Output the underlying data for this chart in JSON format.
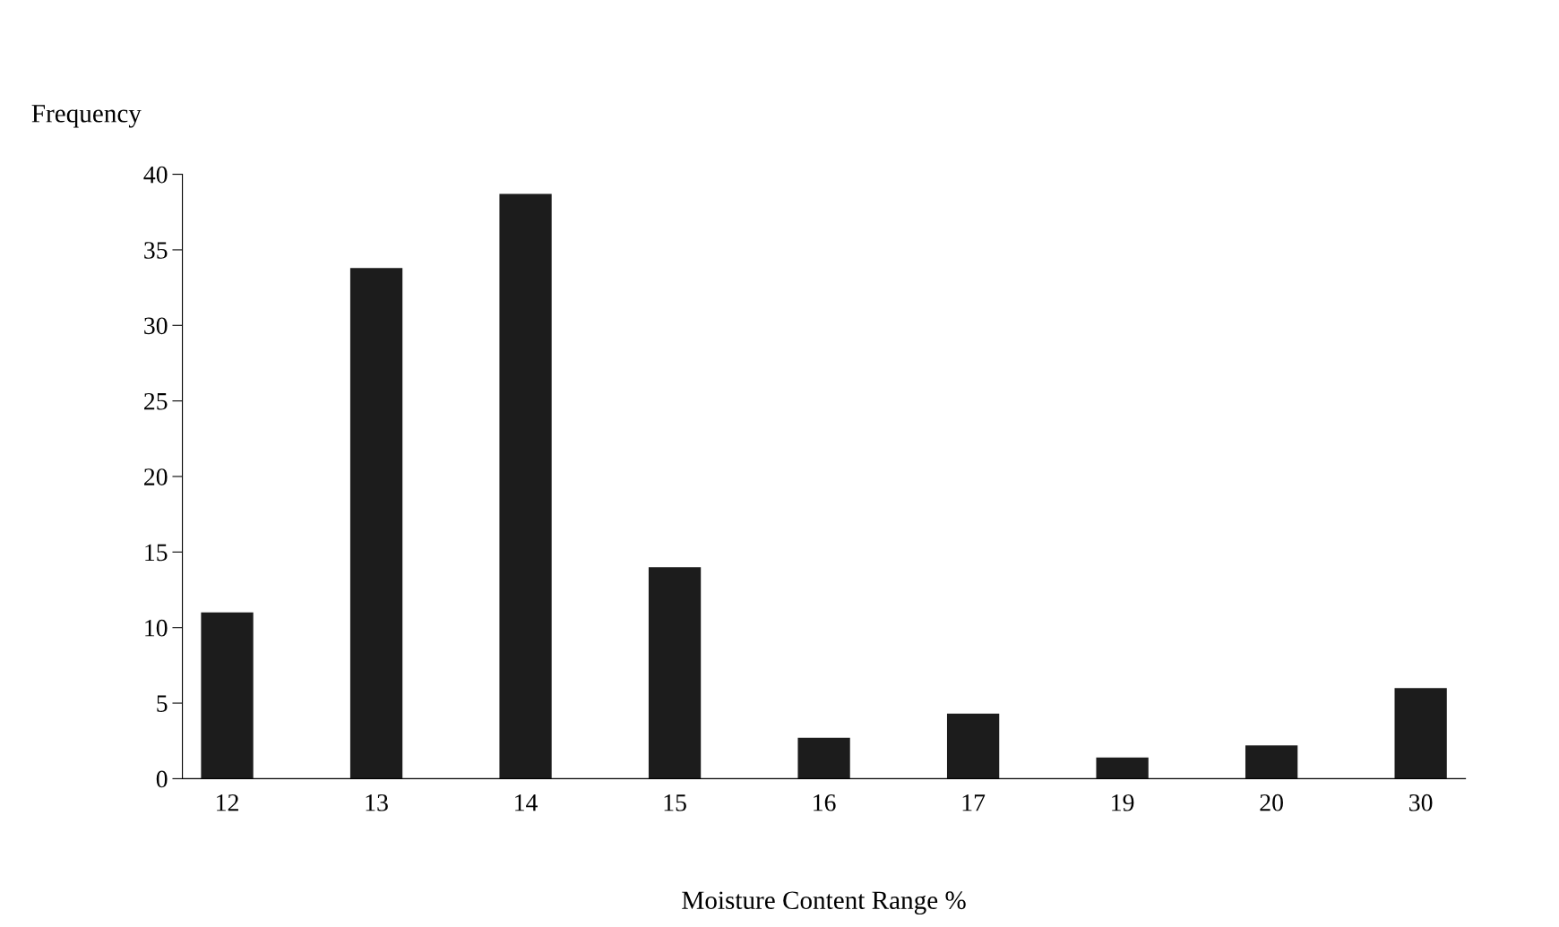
{
  "chart_data": {
    "type": "bar",
    "xlabel": "Moisture Content Range %",
    "ylabel": "Frequency",
    "categories": [
      "12",
      "13",
      "14",
      "15",
      "16",
      "17",
      "19",
      "20",
      "30"
    ],
    "series": [
      {
        "color": "#1c1c1c",
        "values": [
          11,
          33.8,
          38.7,
          14,
          2.7,
          4.3,
          1.4,
          2.2,
          6
        ]
      }
    ],
    "ylim": [
      0,
      40
    ],
    "yticks": [
      0,
      5,
      10,
      15,
      20,
      25,
      30,
      35,
      40
    ],
    "grid": false,
    "legend": false
  }
}
